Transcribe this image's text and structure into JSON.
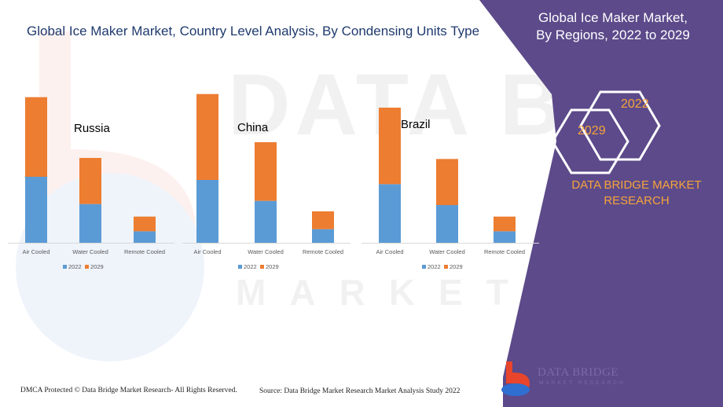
{
  "main_title": "Global Ice Maker Market, Country Level Analysis, By Condensing Units Type",
  "panel": {
    "title_line1": "Global Ice Maker Market,",
    "title_line2": "By Regions, 2022 to 2029",
    "hex_top_label": "2022",
    "hex_bottom_label": "2029",
    "brand_line1": "DATA BRIDGE MARKET",
    "brand_line2": "RESEARCH"
  },
  "watermark": {
    "text": "DATA BRIDGE",
    "sub": "MARKET RESEARCH"
  },
  "colors": {
    "series_2022": "#5b9bd5",
    "series_2029": "#ed7d31",
    "panel": "#5c4a8a",
    "accent": "#f7a33b",
    "title": "#1f3a6e"
  },
  "chart_data": [
    {
      "type": "bar",
      "stacked": true,
      "title": "Russia",
      "categories": [
        "Air Cooled",
        "Water Cooled",
        "Remote Cooled"
      ],
      "series": [
        {
          "name": "2022",
          "values": [
            63,
            37,
            11
          ]
        },
        {
          "name": "2029",
          "values": [
            76,
            44,
            14
          ]
        }
      ],
      "ylim": [
        0,
        150
      ],
      "legend": "bottom",
      "grid": false
    },
    {
      "type": "bar",
      "stacked": true,
      "title": "China",
      "categories": [
        "Air Cooled",
        "Water Cooled",
        "Remote Cooled"
      ],
      "series": [
        {
          "name": "2022",
          "values": [
            60,
            40,
            13
          ]
        },
        {
          "name": "2029",
          "values": [
            82,
            56,
            17
          ]
        }
      ],
      "ylim": [
        0,
        150
      ],
      "legend": "bottom",
      "grid": false
    },
    {
      "type": "bar",
      "stacked": true,
      "title": "Brazil",
      "categories": [
        "Air Cooled",
        "Water Cooled",
        "Remote Cooled"
      ],
      "series": [
        {
          "name": "2022",
          "values": [
            56,
            36,
            11
          ]
        },
        {
          "name": "2029",
          "values": [
            73,
            44,
            14
          ]
        }
      ],
      "ylim": [
        0,
        150
      ],
      "legend": "bottom",
      "grid": false
    }
  ],
  "footer": {
    "left": "DMCA Protected © Data Bridge Market Research- All Rights Reserved.",
    "right": "Source: Data Bridge Market Research Market Analysis Study 2022"
  },
  "logo": {
    "name": "DATA BRIDGE",
    "sub": "MARKET RESEARCH",
    "icon": "data-bridge-logo-icon"
  }
}
